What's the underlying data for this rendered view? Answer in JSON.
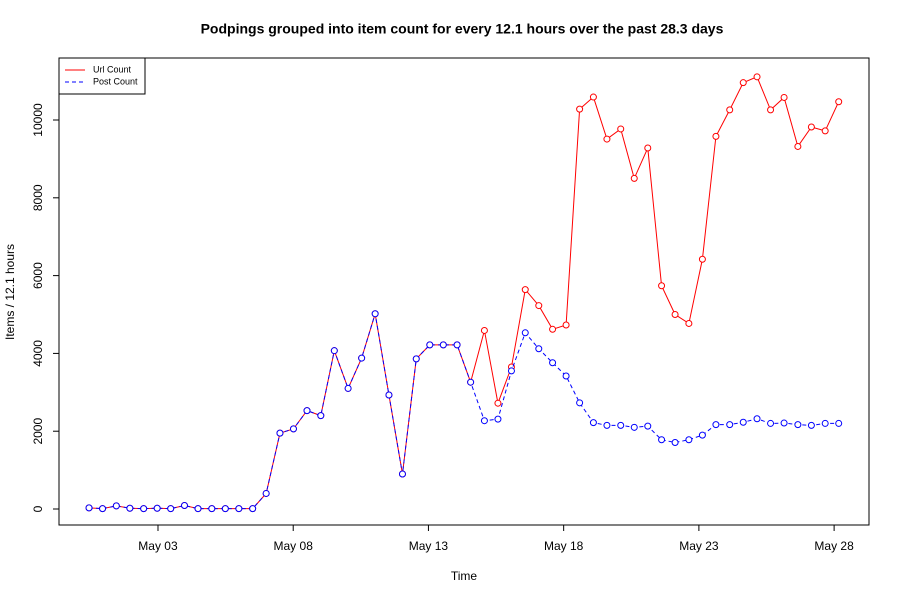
{
  "chart_data": {
    "type": "line",
    "title": "Podpings grouped into item count for every 12.1 hours  over the past 28.3 days",
    "x_label": "Time",
    "y_label": "Items / 12.1 hours",
    "x": [
      0.45,
      0.95,
      1.46,
      1.96,
      2.47,
      2.97,
      3.47,
      3.98,
      4.48,
      4.99,
      5.49,
      5.99,
      6.5,
      7.0,
      7.51,
      8.01,
      8.51,
      9.02,
      9.52,
      10.03,
      10.53,
      11.03,
      11.54,
      12.04,
      12.55,
      13.05,
      13.55,
      14.06,
      14.56,
      15.07,
      15.57,
      16.07,
      16.58,
      17.08,
      17.59,
      18.09,
      18.59,
      19.1,
      19.6,
      20.11,
      20.61,
      21.11,
      21.62,
      22.12,
      22.63,
      23.13,
      23.63,
      24.14,
      24.64,
      25.15,
      25.65,
      26.15,
      26.66,
      27.16,
      27.67,
      28.17
    ],
    "series": [
      {
        "name": "Url Count",
        "color": "#ff0000",
        "dash": false,
        "values": [
          30,
          10,
          80,
          20,
          10,
          20,
          10,
          90,
          10,
          10,
          10,
          10,
          10,
          400,
          1950,
          2060,
          2530,
          2400,
          4070,
          3100,
          3880,
          5020,
          2930,
          900,
          3860,
          4220,
          4220,
          4220,
          3260,
          4590,
          2720,
          3650,
          5640,
          5230,
          4620,
          4730,
          10280,
          10590,
          9510,
          9770,
          8500,
          9280,
          5740,
          5000,
          4770,
          6420,
          9580,
          10260,
          10960,
          11110,
          10260,
          10580,
          9320,
          9820,
          9720,
          10470
        ]
      },
      {
        "name": "Post Count",
        "color": "#0000ff",
        "dash": true,
        "values": [
          30,
          10,
          80,
          20,
          10,
          20,
          10,
          90,
          10,
          10,
          10,
          10,
          10,
          400,
          1950,
          2060,
          2530,
          2400,
          4070,
          3100,
          3880,
          5020,
          2930,
          900,
          3860,
          4220,
          4220,
          4220,
          3260,
          2270,
          2310,
          3550,
          4530,
          4120,
          3760,
          3420,
          2730,
          2220,
          2150,
          2150,
          2100,
          2130,
          1780,
          1710,
          1780,
          1900,
          2170,
          2170,
          2230,
          2320,
          2200,
          2210,
          2170,
          2150,
          2200,
          2200
        ]
      }
    ],
    "xlim": [
      -0.66,
      29.29
    ],
    "xticks": [
      {
        "value": 3,
        "label": "May 03"
      },
      {
        "value": 8,
        "label": "May 08"
      },
      {
        "value": 13,
        "label": "May 13"
      },
      {
        "value": 18,
        "label": "May 18"
      },
      {
        "value": 23,
        "label": "May 23"
      },
      {
        "value": 28,
        "label": "May 28"
      }
    ],
    "ylim": [
      -411,
      11594
    ],
    "yticks": [
      0,
      2000,
      4000,
      6000,
      8000,
      10000
    ],
    "legend": "top-left"
  }
}
